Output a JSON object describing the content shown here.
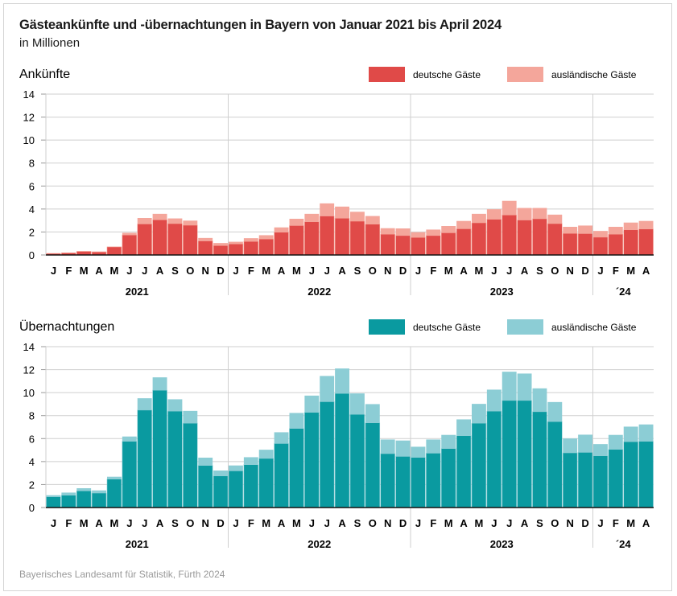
{
  "title": "Gästeankünfte und -übernachtungen in Bayern von Januar 2021 bis April 2024",
  "subtitle": "in Millionen",
  "source": "Bayerisches Landesamt für Statistik, Fürth 2024",
  "chart_data": [
    {
      "type": "bar",
      "stacked": true,
      "title": "Ankünfte",
      "ylim": [
        0,
        14
      ],
      "yticks": [
        0,
        2,
        4,
        6,
        8,
        10,
        12,
        14
      ],
      "grid": true,
      "legend_position": "top-right",
      "month_labels": [
        "J",
        "F",
        "M",
        "A",
        "M",
        "J",
        "J",
        "A",
        "S",
        "O",
        "N",
        "D",
        "J",
        "F",
        "M",
        "A",
        "M",
        "J",
        "J",
        "A",
        "S",
        "O",
        "N",
        "D",
        "J",
        "F",
        "M",
        "A",
        "M",
        "J",
        "J",
        "A",
        "S",
        "O",
        "N",
        "D",
        "J",
        "F",
        "M",
        "A"
      ],
      "year_labels": [
        "2021",
        "2022",
        "2023",
        "´24"
      ],
      "colors": {
        "deutsche": "#e04a48",
        "auslaendische": "#f4a69b"
      },
      "series": [
        {
          "name": "deutsche Gäste",
          "values": [
            0.13,
            0.18,
            0.3,
            0.26,
            0.7,
            1.74,
            2.7,
            3.06,
            2.73,
            2.59,
            1.22,
            0.82,
            0.96,
            1.18,
            1.39,
            1.98,
            2.56,
            2.89,
            3.39,
            3.2,
            2.94,
            2.68,
            1.81,
            1.69,
            1.53,
            1.69,
            1.93,
            2.28,
            2.8,
            3.11,
            3.48,
            3.04,
            3.15,
            2.73,
            1.88,
            1.86,
            1.55,
            1.81,
            2.19,
            2.26
          ]
        },
        {
          "name": "ausländische Gäste",
          "values": [
            0.02,
            0.02,
            0.05,
            0.04,
            0.03,
            0.19,
            0.52,
            0.52,
            0.45,
            0.4,
            0.26,
            0.22,
            0.19,
            0.28,
            0.33,
            0.42,
            0.59,
            0.69,
            1.1,
            1.01,
            0.82,
            0.71,
            0.52,
            0.62,
            0.45,
            0.52,
            0.59,
            0.68,
            0.78,
            0.87,
            1.23,
            1.05,
            0.94,
            0.78,
            0.57,
            0.7,
            0.54,
            0.64,
            0.63,
            0.7
          ]
        }
      ]
    },
    {
      "type": "bar",
      "stacked": true,
      "title": "Übernachtungen",
      "ylim": [
        0,
        14
      ],
      "yticks": [
        0,
        2,
        4,
        6,
        8,
        10,
        12,
        14
      ],
      "grid": true,
      "legend_position": "top-right",
      "month_labels": [
        "J",
        "F",
        "M",
        "A",
        "M",
        "J",
        "J",
        "A",
        "S",
        "O",
        "N",
        "D",
        "J",
        "F",
        "M",
        "A",
        "M",
        "J",
        "J",
        "A",
        "S",
        "O",
        "N",
        "D",
        "J",
        "F",
        "M",
        "A",
        "M",
        "J",
        "J",
        "A",
        "S",
        "O",
        "N",
        "D",
        "J",
        "F",
        "M",
        "A"
      ],
      "year_labels": [
        "2021",
        "2022",
        "2023",
        "´24"
      ],
      "colors": {
        "deutsche": "#0a9aa0",
        "auslaendische": "#8ccdd5"
      },
      "series": [
        {
          "name": "deutsche Gäste",
          "values": [
            0.93,
            1.07,
            1.45,
            1.26,
            2.47,
            5.76,
            8.48,
            10.21,
            8.39,
            7.34,
            3.66,
            2.75,
            3.19,
            3.73,
            4.27,
            5.57,
            6.88,
            8.28,
            9.21,
            9.93,
            8.11,
            7.37,
            4.69,
            4.45,
            4.36,
            4.73,
            5.13,
            6.25,
            7.34,
            8.39,
            9.32,
            9.32,
            8.34,
            7.48,
            4.76,
            4.8,
            4.5,
            5.06,
            5.73,
            5.76
          ]
        },
        {
          "name": "ausländische Gäste",
          "values": [
            0.14,
            0.23,
            0.23,
            0.23,
            0.21,
            0.42,
            1.03,
            1.12,
            1.03,
            1.07,
            0.68,
            0.47,
            0.47,
            0.65,
            0.76,
            0.98,
            1.35,
            1.46,
            2.24,
            2.17,
            1.82,
            1.63,
            1.23,
            1.38,
            0.93,
            1.19,
            1.19,
            1.42,
            1.68,
            1.87,
            2.5,
            2.34,
            2.03,
            1.7,
            1.25,
            1.54,
            1.02,
            1.26,
            1.31,
            1.47
          ]
        }
      ]
    }
  ]
}
